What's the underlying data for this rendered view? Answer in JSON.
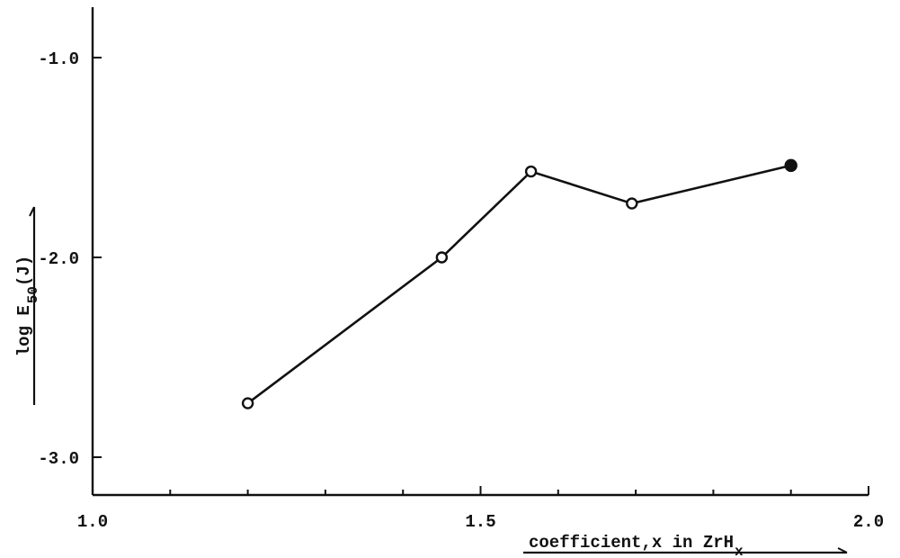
{
  "chart_data": {
    "type": "line",
    "title": "",
    "xlabel": "coefficient,x in ZrH",
    "xlabel_subscript": "x",
    "ylabel": "log E",
    "ylabel_subscript": "50",
    "ylabel_suffix": "(J)",
    "xlim": [
      1.0,
      2.0
    ],
    "ylim": [
      -3.2,
      -0.75
    ],
    "x_tick_labels": [
      "1.0",
      "1.5",
      "2.0"
    ],
    "y_tick_labels": [
      "-1.0",
      "-2.0",
      "-3.0"
    ],
    "grid": false,
    "series": [
      {
        "x": [
          1.2,
          1.45,
          1.565,
          1.695,
          1.9
        ],
        "y": [
          -2.73,
          -2.0,
          -1.57,
          -1.73,
          -1.54
        ],
        "marker_filled": [
          false,
          false,
          false,
          false,
          true
        ]
      }
    ]
  }
}
